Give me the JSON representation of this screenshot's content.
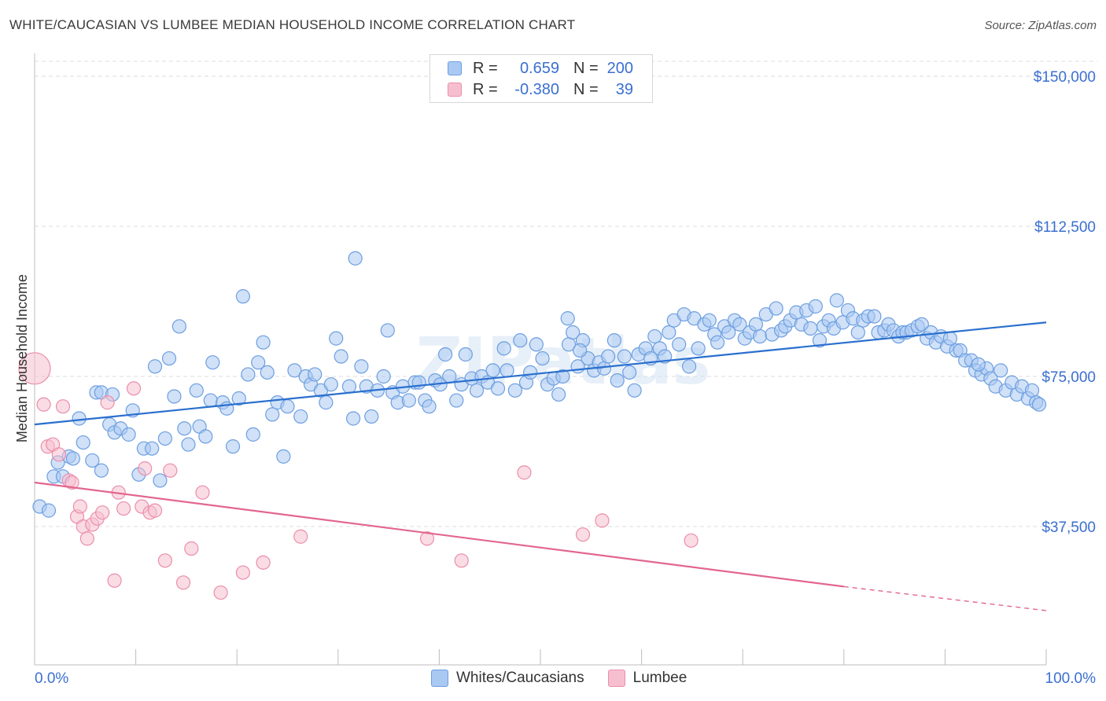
{
  "title": "WHITE/CAUCASIAN VS LUMBEE MEDIAN HOUSEHOLD INCOME CORRELATION CHART",
  "source": "Source: ZipAtlas.com",
  "watermark": "ZIPatlas",
  "colors": {
    "blue_fill": "#a9c8f2",
    "blue_stroke": "#6d9fe0",
    "blue_line": "#2a6fce",
    "pink_fill": "#f6bfd0",
    "pink_stroke": "#eb8eab",
    "pink_line": "#e2668e",
    "axis_text": "#3b6fd0"
  },
  "legend": {
    "r_label": "R =",
    "n_label": "N =",
    "rows": [
      {
        "series": "Whites/Caucasians",
        "r": "0.659",
        "n": "200"
      },
      {
        "series": "Lumbee",
        "r": "-0.380",
        "n": "39"
      }
    ]
  },
  "chart_data": {
    "type": "scatter",
    "title": "WHITE/CAUCASIAN VS LUMBEE MEDIAN HOUSEHOLD INCOME CORRELATION CHART",
    "xlabel": "",
    "ylabel": "Median Household Income",
    "x_tick_labels": [
      "0.0%",
      "100.0%"
    ],
    "y_tick_labels": [
      "$37,500",
      "$75,000",
      "$112,500",
      "$150,000"
    ],
    "y_ticks": [
      37500,
      75000,
      112500,
      150000
    ],
    "xlim": [
      0,
      100
    ],
    "ylim": [
      0,
      154000
    ],
    "grid": true,
    "legend_position": "top-center",
    "series": [
      {
        "name": "Whites/Caucasians",
        "trend": {
          "x": [
            0,
            100
          ],
          "y": [
            63000,
            88500
          ]
        },
        "points": [
          [
            0.5,
            42500
          ],
          [
            1.4,
            41500
          ],
          [
            1.9,
            50000
          ],
          [
            2.3,
            53500
          ],
          [
            2.8,
            50000
          ],
          [
            3.4,
            55000
          ],
          [
            3.8,
            54500
          ],
          [
            4.4,
            64500
          ],
          [
            4.8,
            58500
          ],
          [
            5.7,
            54000
          ],
          [
            6.1,
            71000
          ],
          [
            6.6,
            51500
          ],
          [
            6.6,
            71000
          ],
          [
            7.4,
            63000
          ],
          [
            7.7,
            70500
          ],
          [
            7.9,
            61000
          ],
          [
            8.5,
            62000
          ],
          [
            9.3,
            60500
          ],
          [
            9.7,
            66500
          ],
          [
            10.3,
            50500
          ],
          [
            10.8,
            57000
          ],
          [
            11.6,
            57000
          ],
          [
            11.9,
            77500
          ],
          [
            12.4,
            49000
          ],
          [
            12.9,
            59500
          ],
          [
            13.3,
            79500
          ],
          [
            13.8,
            70000
          ],
          [
            14.3,
            87500
          ],
          [
            14.8,
            62000
          ],
          [
            15.2,
            58000
          ],
          [
            16.0,
            71500
          ],
          [
            16.3,
            62500
          ],
          [
            16.9,
            60000
          ],
          [
            17.4,
            69000
          ],
          [
            17.6,
            78500
          ],
          [
            18.6,
            68500
          ],
          [
            19.0,
            67000
          ],
          [
            19.6,
            57500
          ],
          [
            20.2,
            69500
          ],
          [
            20.6,
            95000
          ],
          [
            21.1,
            75500
          ],
          [
            21.6,
            60500
          ],
          [
            22.1,
            78500
          ],
          [
            22.6,
            83500
          ],
          [
            23.0,
            76000
          ],
          [
            23.5,
            65500
          ],
          [
            24.0,
            68500
          ],
          [
            24.6,
            55000
          ],
          [
            25.0,
            67500
          ],
          [
            25.7,
            76500
          ],
          [
            26.3,
            65000
          ],
          [
            26.8,
            75000
          ],
          [
            27.3,
            73000
          ],
          [
            27.7,
            75500
          ],
          [
            28.3,
            71500
          ],
          [
            28.8,
            68500
          ],
          [
            29.3,
            73000
          ],
          [
            29.8,
            84500
          ],
          [
            30.3,
            80000
          ],
          [
            31.1,
            72500
          ],
          [
            31.5,
            64500
          ],
          [
            31.7,
            104500
          ],
          [
            32.3,
            77500
          ],
          [
            32.8,
            72500
          ],
          [
            33.3,
            65000
          ],
          [
            33.9,
            71500
          ],
          [
            34.5,
            75000
          ],
          [
            34.9,
            86500
          ],
          [
            35.4,
            71000
          ],
          [
            35.9,
            68500
          ],
          [
            36.4,
            72500
          ],
          [
            37.0,
            69000
          ],
          [
            37.6,
            73500
          ],
          [
            38.0,
            73500
          ],
          [
            38.6,
            69000
          ],
          [
            39.0,
            67500
          ],
          [
            39.6,
            74000
          ],
          [
            40.1,
            73000
          ],
          [
            40.6,
            80500
          ],
          [
            41.0,
            75000
          ],
          [
            41.7,
            69000
          ],
          [
            42.2,
            73000
          ],
          [
            42.6,
            80500
          ],
          [
            43.2,
            74500
          ],
          [
            43.7,
            71500
          ],
          [
            44.2,
            75000
          ],
          [
            44.8,
            73500
          ],
          [
            45.3,
            76500
          ],
          [
            45.8,
            72000
          ],
          [
            46.4,
            82000
          ],
          [
            46.7,
            76500
          ],
          [
            47.5,
            71500
          ],
          [
            48.0,
            84000
          ],
          [
            48.6,
            73500
          ],
          [
            49.0,
            76000
          ],
          [
            49.6,
            83000
          ],
          [
            50.2,
            79500
          ],
          [
            50.7,
            73000
          ],
          [
            51.3,
            74500
          ],
          [
            51.8,
            70500
          ],
          [
            52.2,
            75000
          ],
          [
            52.8,
            83000
          ],
          [
            53.2,
            86000
          ],
          [
            53.7,
            77500
          ],
          [
            54.2,
            84000
          ],
          [
            54.7,
            79500
          ],
          [
            55.3,
            76500
          ],
          [
            55.8,
            78500
          ],
          [
            56.3,
            77000
          ],
          [
            56.7,
            80000
          ],
          [
            57.3,
            84000
          ],
          [
            57.6,
            74000
          ],
          [
            58.3,
            80000
          ],
          [
            58.8,
            76000
          ],
          [
            59.3,
            71500
          ],
          [
            59.7,
            80500
          ],
          [
            60.4,
            82000
          ],
          [
            60.9,
            79500
          ],
          [
            61.3,
            85000
          ],
          [
            61.8,
            82000
          ],
          [
            62.3,
            80000
          ],
          [
            62.7,
            86000
          ],
          [
            63.2,
            89000
          ],
          [
            63.7,
            83000
          ],
          [
            64.2,
            90500
          ],
          [
            64.7,
            77500
          ],
          [
            65.2,
            89500
          ],
          [
            65.6,
            82000
          ],
          [
            66.2,
            88000
          ],
          [
            66.7,
            89000
          ],
          [
            67.2,
            85500
          ],
          [
            67.5,
            83500
          ],
          [
            68.2,
            87500
          ],
          [
            68.6,
            86000
          ],
          [
            69.2,
            89000
          ],
          [
            69.7,
            88000
          ],
          [
            70.2,
            84500
          ],
          [
            70.7,
            86000
          ],
          [
            71.3,
            88000
          ],
          [
            71.7,
            85000
          ],
          [
            72.3,
            90500
          ],
          [
            72.9,
            85500
          ],
          [
            73.3,
            92000
          ],
          [
            73.8,
            86500
          ],
          [
            74.2,
            87500
          ],
          [
            74.7,
            89000
          ],
          [
            75.3,
            91000
          ],
          [
            75.8,
            88000
          ],
          [
            76.3,
            91500
          ],
          [
            76.7,
            87000
          ],
          [
            77.2,
            92500
          ],
          [
            77.6,
            84000
          ],
          [
            78.0,
            87500
          ],
          [
            78.5,
            89000
          ],
          [
            79.0,
            87000
          ],
          [
            79.3,
            94000
          ],
          [
            79.9,
            88500
          ],
          [
            80.4,
            91500
          ],
          [
            80.9,
            89500
          ],
          [
            81.4,
            86000
          ],
          [
            81.9,
            89000
          ],
          [
            82.4,
            90000
          ],
          [
            83.0,
            90000
          ],
          [
            83.4,
            86000
          ],
          [
            84.0,
            86500
          ],
          [
            84.4,
            88000
          ],
          [
            84.9,
            86500
          ],
          [
            85.4,
            85000
          ],
          [
            85.8,
            86000
          ],
          [
            86.2,
            86000
          ],
          [
            86.7,
            86500
          ],
          [
            87.3,
            87500
          ],
          [
            87.7,
            88000
          ],
          [
            88.2,
            84500
          ],
          [
            88.6,
            86000
          ],
          [
            89.1,
            83500
          ],
          [
            89.6,
            85000
          ],
          [
            90.2,
            82500
          ],
          [
            90.5,
            84500
          ],
          [
            91.1,
            81500
          ],
          [
            91.5,
            81500
          ],
          [
            92.0,
            79000
          ],
          [
            92.6,
            79000
          ],
          [
            93.0,
            76500
          ],
          [
            93.6,
            75500
          ],
          [
            94.1,
            77000
          ],
          [
            94.5,
            74500
          ],
          [
            95.0,
            72500
          ],
          [
            95.5,
            76500
          ],
          [
            96.0,
            71500
          ],
          [
            96.6,
            73500
          ],
          [
            97.1,
            70500
          ],
          [
            97.6,
            72500
          ],
          [
            98.2,
            69500
          ],
          [
            98.6,
            71500
          ],
          [
            99.0,
            68500
          ],
          [
            99.3,
            68000
          ],
          [
            93.3,
            78000
          ],
          [
            53.9,
            81500
          ],
          [
            52.7,
            89500
          ]
        ]
      },
      {
        "name": "Lumbee",
        "trend": {
          "x": [
            0,
            80
          ],
          "y": [
            48500,
            22500
          ]
        },
        "trend_dashed": {
          "x": [
            80,
            100
          ],
          "y": [
            22500,
            16500
          ]
        },
        "points": [
          [
            0.0,
            77000
          ],
          [
            0.9,
            68000
          ],
          [
            1.3,
            57500
          ],
          [
            1.8,
            58000
          ],
          [
            2.4,
            55500
          ],
          [
            2.8,
            67500
          ],
          [
            3.4,
            49000
          ],
          [
            3.7,
            48500
          ],
          [
            4.2,
            40000
          ],
          [
            4.5,
            42500
          ],
          [
            4.8,
            37500
          ],
          [
            5.2,
            34500
          ],
          [
            5.7,
            38000
          ],
          [
            6.2,
            39500
          ],
          [
            6.7,
            41000
          ],
          [
            7.2,
            68500
          ],
          [
            7.9,
            24000
          ],
          [
            8.3,
            46000
          ],
          [
            8.8,
            42000
          ],
          [
            9.8,
            72000
          ],
          [
            10.6,
            42500
          ],
          [
            10.9,
            52000
          ],
          [
            11.4,
            41000
          ],
          [
            11.9,
            41500
          ],
          [
            12.9,
            29000
          ],
          [
            13.4,
            51500
          ],
          [
            14.7,
            23500
          ],
          [
            15.5,
            32000
          ],
          [
            16.6,
            46000
          ],
          [
            18.4,
            21000
          ],
          [
            20.6,
            26000
          ],
          [
            22.6,
            28500
          ],
          [
            26.3,
            35000
          ],
          [
            38.8,
            34500
          ],
          [
            42.2,
            29000
          ],
          [
            48.4,
            51000
          ],
          [
            54.2,
            35500
          ],
          [
            56.1,
            39000
          ],
          [
            64.9,
            34000
          ]
        ]
      }
    ]
  }
}
